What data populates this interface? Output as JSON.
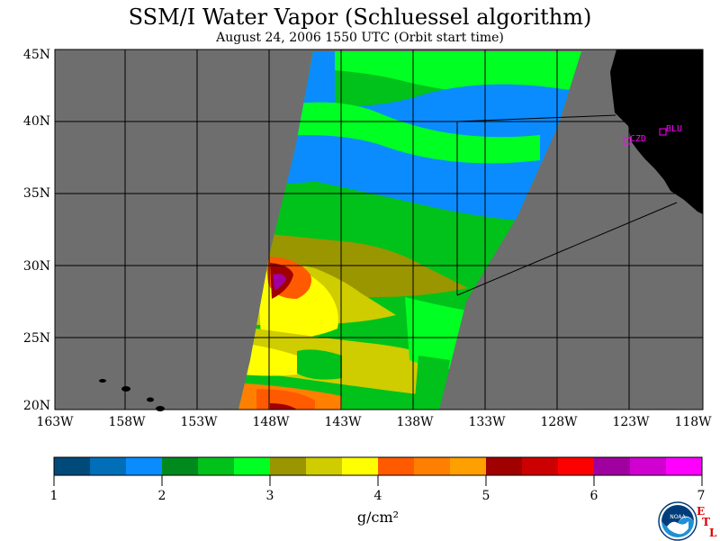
{
  "title": "SSM/I Water Vapor (Schluessel algorithm)",
  "subtitle": "August 24, 2006  1550 UTC  (Orbit start time)",
  "map": {
    "lat_labels": [
      "45N",
      "40N",
      "35N",
      "30N",
      "25N",
      "20N"
    ],
    "lon_labels": [
      "163W",
      "158W",
      "153W",
      "148W",
      "143W",
      "138W",
      "133W",
      "128W",
      "123W",
      "118W"
    ],
    "lat_range": [
      20,
      45
    ],
    "lon_range": [
      -163,
      -118
    ],
    "stations": [
      {
        "name": "CZD",
        "lat": 38.6,
        "lon": -123.2
      },
      {
        "name": "BLU",
        "lat": 39.2,
        "lon": -120.8
      }
    ]
  },
  "colorbar": {
    "ticks": [
      "1",
      "2",
      "3",
      "4",
      "5",
      "6",
      "7"
    ],
    "range": [
      1,
      7
    ],
    "units": "g/cm²",
    "colors": [
      "#004a7a",
      "#006fb8",
      "#0a8cff",
      "#008a1e",
      "#00c21a",
      "#00ff22",
      "#9a9600",
      "#cfcc00",
      "#ffff00",
      "#ff5a00",
      "#ff8000",
      "#ffa000",
      "#a00000",
      "#cc0000",
      "#ff0000",
      "#a000a0",
      "#d000d0",
      "#ff00ff"
    ]
  },
  "colors": {
    "ocean": "#6e6e6e",
    "land": "#000000",
    "grid": "#000000",
    "station": "#ff00ff"
  },
  "logo": {
    "text": "NOAA",
    "letters": [
      "E",
      "T",
      "L"
    ]
  }
}
